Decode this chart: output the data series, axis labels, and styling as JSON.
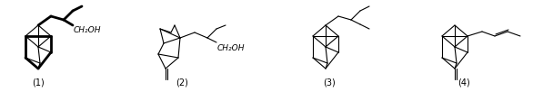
{
  "background_color": "#ffffff",
  "labels": [
    "(1)",
    "(2)",
    "(3)",
    "(4)"
  ],
  "label_fontsize": 7,
  "text1": "CH₂OH",
  "text2": "CH₂OH",
  "figsize": [
    6.08,
    1.02
  ],
  "dpi": 100,
  "lw_thin": 0.8,
  "lw_bold": 2.0
}
